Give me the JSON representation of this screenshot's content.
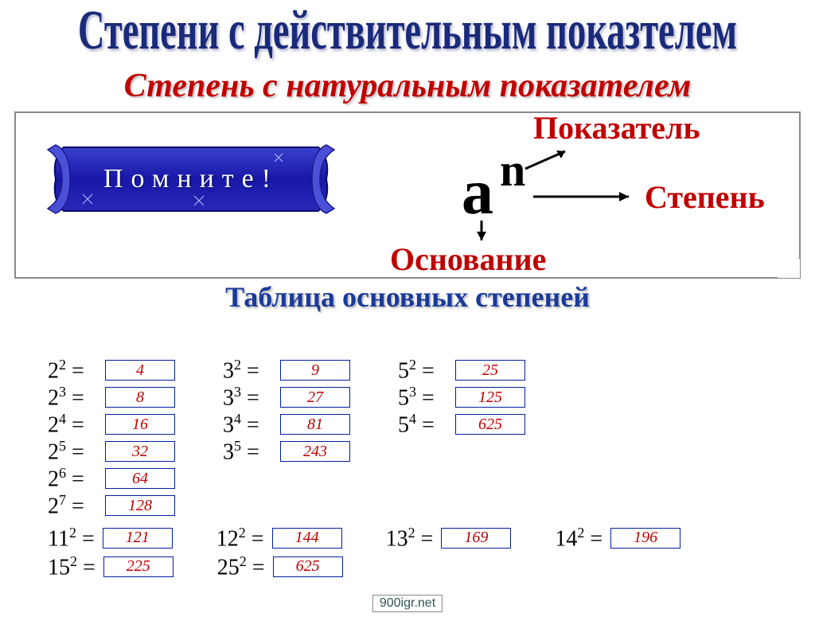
{
  "title_main": "Степени с действительным показтелем",
  "title_sub": "Степень с натуральным показателем",
  "banner_text": "Помните!",
  "an": {
    "base": "a",
    "exp": "n"
  },
  "labels": {
    "pokazatel": "Показатель",
    "stepen": "Степень",
    "osnovanie": "Основание"
  },
  "table_title": "Таблица основных степеней",
  "colors": {
    "title_main": "#1a2a7a",
    "title_sub": "#c00000",
    "label": "#c00000",
    "table_title": "#1a3a9a",
    "banner_fill": "#2222aa",
    "banner_stroke": "#0a0a66",
    "answer_border": "#0020a0",
    "answer_text": "#c00000"
  },
  "column1": [
    {
      "b": "2",
      "e": "2",
      "v": "4"
    },
    {
      "b": "2",
      "e": "3",
      "v": "8"
    },
    {
      "b": "2",
      "e": "4",
      "v": "16"
    },
    {
      "b": "2",
      "e": "5",
      "v": "32"
    },
    {
      "b": "2",
      "e": "6",
      "v": "64"
    },
    {
      "b": "2",
      "e": "7",
      "v": "128"
    }
  ],
  "column2": [
    {
      "b": "3",
      "e": "2",
      "v": "9"
    },
    {
      "b": "3",
      "e": "3",
      "v": "27"
    },
    {
      "b": "3",
      "e": "4",
      "v": "81"
    },
    {
      "b": "3",
      "e": "5",
      "v": "243"
    }
  ],
  "column3": [
    {
      "b": "5",
      "e": "2",
      "v": "25"
    },
    {
      "b": "5",
      "e": "3",
      "v": "125"
    },
    {
      "b": "5",
      "e": "4",
      "v": "625"
    }
  ],
  "bottom_row1": [
    {
      "b": "11",
      "e": "2",
      "v": "121"
    },
    {
      "b": "12",
      "e": "2",
      "v": "144"
    },
    {
      "b": "13",
      "e": "2",
      "v": "169"
    },
    {
      "b": "14",
      "e": "2",
      "v": "196"
    }
  ],
  "bottom_row2": [
    {
      "b": "15",
      "e": "2",
      "v": "225"
    },
    {
      "b": "25",
      "e": "2",
      "v": "625"
    }
  ],
  "footer": "900igr.net"
}
